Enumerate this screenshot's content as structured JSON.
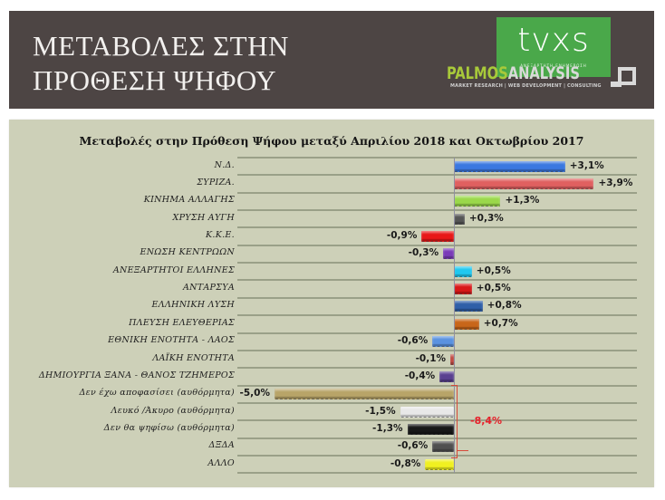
{
  "banner": {
    "title_line1": "ΜΕΤΑΒΟΛΕΣ ΣΤΗΝ",
    "title_line2": "ΠΡΟΘΕΣΗ ΨΗΦΟΥ",
    "logo_tvxs": "tvxs",
    "logo_tvxs_tagline": "ΑΝΕΞΑΡΤΗΤΗ ΕΝΗΜΕΡΩΣΗ",
    "logo_palmos_part1": "PALMOS",
    "logo_palmos_part2": "ANALYSIS",
    "logo_palmos_tagline": "MARKET RESEARCH | WEB DEVELOPMENT | CONSULTING",
    "colors": {
      "background": "#4d4544",
      "tvxs_green": "#4aa84a",
      "palmos_green": "#a8c93a",
      "palmos_grey": "#d9d9d9"
    }
  },
  "chart_data": {
    "type": "bar",
    "orientation": "horizontal",
    "title": "Μεταβολές στην Πρόθεση Ψήφου μεταξύ Απριλίου 2018 και Οκτωβρίου 2017",
    "xlabel": "",
    "ylabel": "",
    "grid": true,
    "legend": false,
    "unit": "%",
    "categories": [
      "Ν.Δ.",
      "ΣΥΡΙΖΑ.",
      "ΚΙΝΗΜΑ ΑΛΛΑΓΗΣ",
      "ΧΡΥΣΗ ΑΥΓΗ",
      "Κ.Κ.Ε.",
      "ΕΝΩΣΗ ΚΕΝΤΡΩΩΝ",
      "ΑΝΕΞΑΡΤΗΤΟΙ ΕΛΛΗΝΕΣ",
      "ΑΝΤΑΡΣΥΑ",
      "ΕΛΛΗΝΙΚΗ ΛΥΣΗ",
      "ΠΛΕΥΣΗ ΕΛΕΥΘΕΡΙΑΣ",
      "ΕΘΝΙΚΗ ΕΝΟΤΗΤΑ  - ΛΑΟΣ",
      "ΛΑΪΚΗ ΕΝΟΤΗΤΑ",
      "ΔΗΜΙΟΥΡΓΙΑ ΞΑΝΑ - ΘΑΝΟΣ ΤΖΗΜΕΡΟΣ",
      "Δεν έχω αποφασίσει (αυθόρμητα)",
      "Λευκό /Άκυρο (αυθόρμητα)",
      "Δεν θα ψηφίσω (αυθόρμητα)",
      "ΔΞΔΑ",
      "ΑΛΛΟ"
    ],
    "values": [
      3.1,
      3.9,
      1.3,
      0.3,
      -0.9,
      -0.3,
      0.5,
      0.5,
      0.8,
      0.7,
      -0.6,
      -0.1,
      -0.4,
      -5.0,
      -1.5,
      -1.3,
      -0.6,
      -0.8
    ],
    "value_labels": [
      "+3,1%",
      "+3,9%",
      "+1,3%",
      "+0,3%",
      "-0,9%",
      "-0,3%",
      "+0,5%",
      "+0,5%",
      "+0,8%",
      "+0,7%",
      "-0,6%",
      "-0,1%",
      "-0,4%",
      "-5,0%",
      "-1,5%",
      "-1,3%",
      "-0,6%",
      "-0,8%"
    ],
    "bar_colors": [
      "#3a78e0",
      "#e06060",
      "#9ad84a",
      "#555555",
      "#e81818",
      "#7a3ab8",
      "#20c8f0",
      "#d81818",
      "#2f5fa8",
      "#c8661a",
      "#5a92e0",
      "#c0443c",
      "#5a4090",
      "#b8a468",
      "#e8e8e8",
      "#181818",
      "#505050",
      "#f0f020"
    ],
    "annotations": [
      {
        "text": "-8,4%",
        "type": "bracket",
        "spans": [
          "Δεν έχω αποφασίσει (αυθόρμητα)",
          "ΔΞΔΑ"
        ],
        "color": "#e8202a"
      }
    ],
    "xlim": [
      -5.0,
      3.9
    ]
  }
}
